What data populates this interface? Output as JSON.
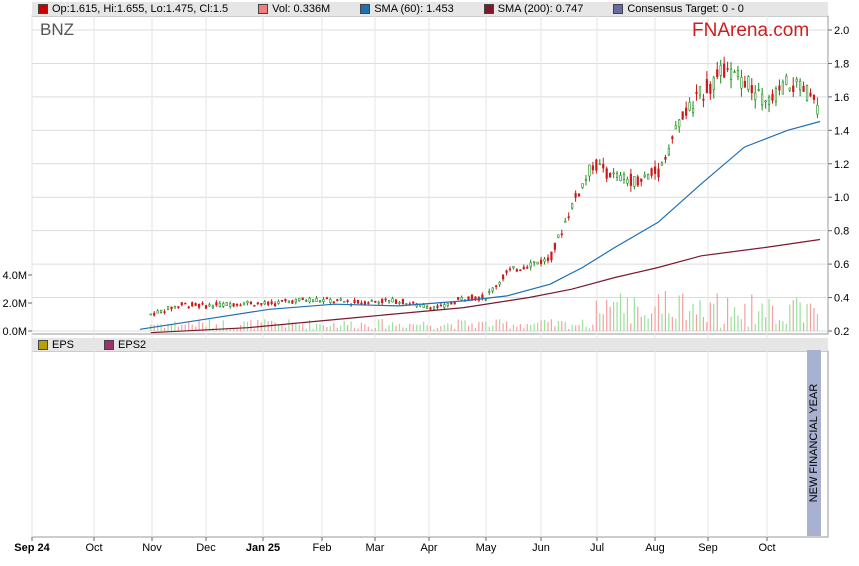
{
  "ticker": "BNZ",
  "brand": "FNArena.com",
  "legend": [
    {
      "label": "Op:1.615, Hi:1.655, Lo:1.475, Cl:1.5",
      "color": "#cc0000"
    },
    {
      "label": "Vol: 0.336M",
      "color": "#f08080"
    },
    {
      "label": "SMA (60): 1.453",
      "color": "#1f6fb4"
    },
    {
      "label": "SMA (200): 0.747",
      "color": "#7a1a2e"
    },
    {
      "label": "Consensus Target: 0 - 0",
      "color": "#6a6aa8"
    }
  ],
  "eps_legend": [
    {
      "label": "EPS",
      "color": "#b8a000"
    },
    {
      "label": "EPS2",
      "color": "#a0306a"
    }
  ],
  "annotation": "NEW FINANCIAL YEAR",
  "chart_data": {
    "type": "candlestick",
    "price_axis": {
      "min": 0.2,
      "max": 2.0,
      "ticks": [
        "0.2",
        "0.4",
        "0.6",
        "0.8",
        "1.0",
        "1.2",
        "1.4",
        "1.6",
        "1.8",
        "2.0"
      ]
    },
    "volume_axis": {
      "ticks": [
        "0.0M",
        "2.0M",
        "4.0M"
      ]
    },
    "x_ticks": [
      "Sep 24",
      "Oct",
      "Nov",
      "Dec",
      "Jan 25",
      "Feb",
      "Mar",
      "Apr",
      "May",
      "Jun",
      "Jul",
      "Aug",
      "Sep",
      "Oct"
    ],
    "price_path": [
      [
        0,
        0.21
      ],
      [
        10,
        0.21
      ],
      [
        20,
        0.22
      ],
      [
        30,
        0.23
      ],
      [
        40,
        0.25
      ],
      [
        50,
        0.28
      ],
      [
        60,
        0.32
      ],
      [
        70,
        0.36
      ],
      [
        80,
        0.35
      ],
      [
        90,
        0.36
      ],
      [
        100,
        0.37
      ],
      [
        110,
        0.36
      ],
      [
        120,
        0.38
      ],
      [
        130,
        0.39
      ],
      [
        140,
        0.38
      ],
      [
        150,
        0.37
      ],
      [
        160,
        0.38
      ],
      [
        170,
        0.38
      ],
      [
        180,
        0.35
      ],
      [
        190,
        0.34
      ],
      [
        200,
        0.4
      ],
      [
        210,
        0.4
      ],
      [
        220,
        0.55
      ],
      [
        230,
        0.6
      ],
      [
        240,
        0.63
      ],
      [
        250,
        0.95
      ],
      [
        260,
        1.2
      ],
      [
        270,
        1.12
      ],
      [
        280,
        1.1
      ],
      [
        290,
        1.15
      ],
      [
        300,
        1.45
      ],
      [
        310,
        1.62
      ],
      [
        320,
        1.75
      ],
      [
        330,
        1.7
      ],
      [
        340,
        1.55
      ],
      [
        350,
        1.68
      ],
      [
        360,
        1.62
      ],
      [
        365,
        1.5
      ]
    ],
    "sma60_path": [
      [
        50,
        0.21
      ],
      [
        80,
        0.27
      ],
      [
        110,
        0.33
      ],
      [
        140,
        0.36
      ],
      [
        170,
        0.35
      ],
      [
        200,
        0.38
      ],
      [
        220,
        0.41
      ],
      [
        240,
        0.48
      ],
      [
        255,
        0.58
      ],
      [
        270,
        0.7
      ],
      [
        290,
        0.85
      ],
      [
        310,
        1.08
      ],
      [
        330,
        1.3
      ],
      [
        350,
        1.4
      ],
      [
        365,
        1.453
      ]
    ],
    "sma200_path": [
      [
        55,
        0.19
      ],
      [
        100,
        0.22
      ],
      [
        150,
        0.28
      ],
      [
        200,
        0.34
      ],
      [
        230,
        0.4
      ],
      [
        250,
        0.45
      ],
      [
        270,
        0.52
      ],
      [
        290,
        0.58
      ],
      [
        310,
        0.65
      ],
      [
        340,
        0.7
      ],
      [
        365,
        0.747
      ]
    ]
  }
}
